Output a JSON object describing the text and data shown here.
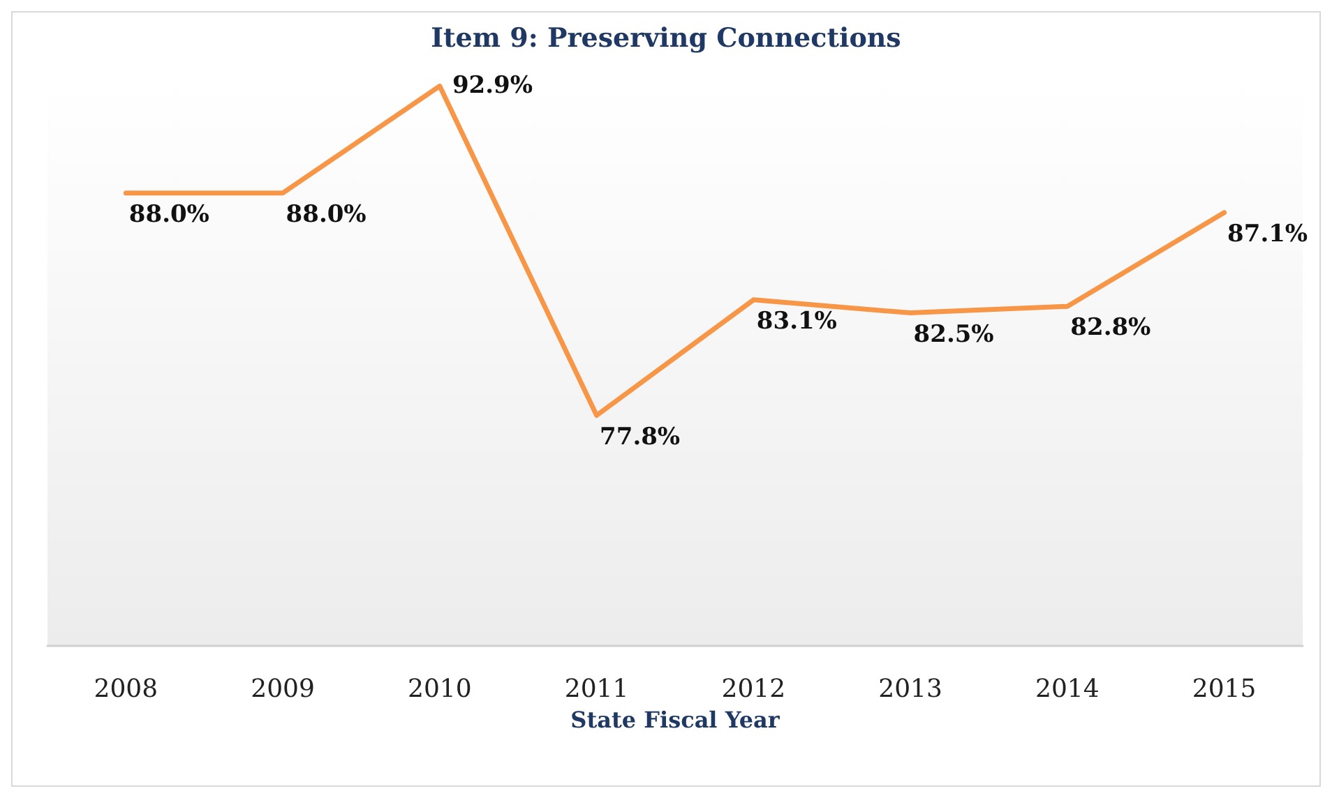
{
  "chart_data": {
    "type": "line",
    "title": "Item 9: Preserving Connections",
    "xlabel": "State Fiscal Year",
    "categories": [
      "2008",
      "2009",
      "2010",
      "2011",
      "2012",
      "2013",
      "2014",
      "2015"
    ],
    "series": [
      {
        "color": "#f79646",
        "values": [
          88.0,
          88.0,
          92.9,
          77.8,
          83.1,
          82.5,
          82.8,
          87.1
        ],
        "value_labels": [
          "88.0%",
          "88.0%",
          "92.9%",
          "77.8%",
          "83.1%",
          "82.5%",
          "82.8%",
          "87.1%"
        ]
      }
    ],
    "grid": false,
    "marker": "none",
    "line_style": "solid"
  }
}
